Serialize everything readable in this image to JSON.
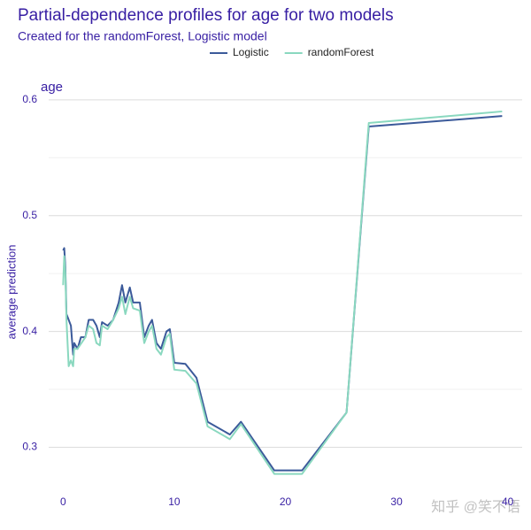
{
  "chart_data": {
    "type": "line",
    "title": "Partial-dependence profiles for age for two models",
    "subtitle": "Created for the randomForest, Logistic model",
    "facet_label": "age",
    "y_label": "average prediction",
    "watermark": "知乎 @笑不语",
    "legend_position": "top",
    "grid": true,
    "xlim": [
      -1.3,
      41.3
    ],
    "xticks": [
      0,
      10,
      20,
      30,
      40
    ],
    "ylim": [
      0.266,
      0.606
    ],
    "yticks": [
      0.3,
      0.4,
      0.5,
      0.6
    ],
    "yminorticks": [
      0.35,
      0.45,
      0.55
    ],
    "series": [
      {
        "name": "Logistic",
        "color": "#3b5a9a",
        "x": [
          0,
          0.1,
          0.2,
          0.3,
          0.5,
          0.7,
          0.9,
          1.0,
          1.3,
          1.6,
          2,
          2.3,
          2.7,
          3,
          3.3,
          3.5,
          4,
          4.5,
          5,
          5.3,
          5.6,
          6,
          6.3,
          6.9,
          7.3,
          7.7,
          8,
          8.4,
          8.8,
          9.3,
          9.6,
          10,
          11,
          12,
          13,
          15,
          16,
          19,
          21.5,
          25.5,
          27.5,
          39.5
        ],
        "values": [
          0.47,
          0.472,
          0.455,
          0.415,
          0.41,
          0.405,
          0.38,
          0.39,
          0.385,
          0.395,
          0.395,
          0.41,
          0.41,
          0.405,
          0.395,
          0.408,
          0.405,
          0.41,
          0.425,
          0.44,
          0.425,
          0.438,
          0.425,
          0.425,
          0.395,
          0.405,
          0.41,
          0.39,
          0.385,
          0.4,
          0.402,
          0.373,
          0.372,
          0.36,
          0.322,
          0.311,
          0.322,
          0.28,
          0.28,
          0.33,
          0.577,
          0.586
        ]
      },
      {
        "name": "randomForest",
        "color": "#8ad8bf",
        "x": [
          0,
          0.1,
          0.2,
          0.3,
          0.5,
          0.7,
          0.9,
          1.0,
          1.3,
          2,
          2.3,
          2.7,
          3,
          3.3,
          3.5,
          4,
          4.5,
          5,
          5.3,
          5.6,
          6,
          6.3,
          6.9,
          7.3,
          7.7,
          8,
          8.4,
          8.8,
          9.3,
          9.6,
          10,
          11,
          12,
          13,
          15,
          16,
          19,
          21.5,
          25.5,
          27.5,
          39.5
        ],
        "values": [
          0.44,
          0.465,
          0.45,
          0.41,
          0.37,
          0.375,
          0.37,
          0.385,
          0.385,
          0.395,
          0.405,
          0.402,
          0.39,
          0.388,
          0.405,
          0.402,
          0.41,
          0.42,
          0.43,
          0.415,
          0.43,
          0.42,
          0.418,
          0.39,
          0.4,
          0.405,
          0.385,
          0.38,
          0.395,
          0.398,
          0.367,
          0.366,
          0.355,
          0.318,
          0.307,
          0.32,
          0.277,
          0.277,
          0.33,
          0.58,
          0.59
        ]
      }
    ]
  }
}
